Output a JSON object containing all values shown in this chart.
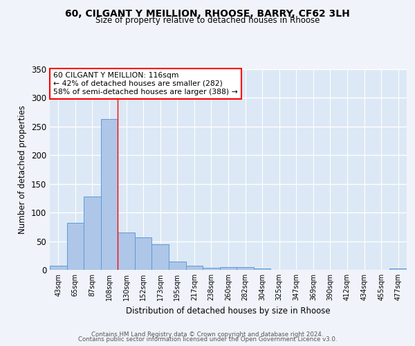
{
  "title1": "60, CILGANT Y MEILLION, RHOOSE, BARRY, CF62 3LH",
  "title2": "Size of property relative to detached houses in Rhoose",
  "xlabel": "Distribution of detached houses by size in Rhoose",
  "ylabel": "Number of detached properties",
  "bar_color": "#aec6e8",
  "bar_edge_color": "#5b9bd5",
  "background_color": "#dce8f5",
  "grid_color": "#ffffff",
  "fig_background": "#f0f4fa",
  "categories": [
    "43sqm",
    "65sqm",
    "87sqm",
    "108sqm",
    "130sqm",
    "152sqm",
    "173sqm",
    "195sqm",
    "217sqm",
    "238sqm",
    "260sqm",
    "282sqm",
    "304sqm",
    "325sqm",
    "347sqm",
    "369sqm",
    "390sqm",
    "412sqm",
    "434sqm",
    "455sqm",
    "477sqm"
  ],
  "values": [
    7,
    82,
    128,
    263,
    65,
    57,
    45,
    14,
    7,
    4,
    5,
    5,
    3,
    0,
    0,
    0,
    0,
    0,
    0,
    0,
    3
  ],
  "ylim": [
    0,
    350
  ],
  "yticks": [
    0,
    50,
    100,
    150,
    200,
    250,
    300,
    350
  ],
  "red_line_x": 3.5,
  "annotation_text": "60 CILGANT Y MEILLION: 116sqm\n← 42% of detached houses are smaller (282)\n58% of semi-detached houses are larger (388) →",
  "annotation_box_color": "white",
  "annotation_box_edge": "red",
  "footer1": "Contains HM Land Registry data © Crown copyright and database right 2024.",
  "footer2": "Contains public sector information licensed under the Open Government Licence v3.0."
}
